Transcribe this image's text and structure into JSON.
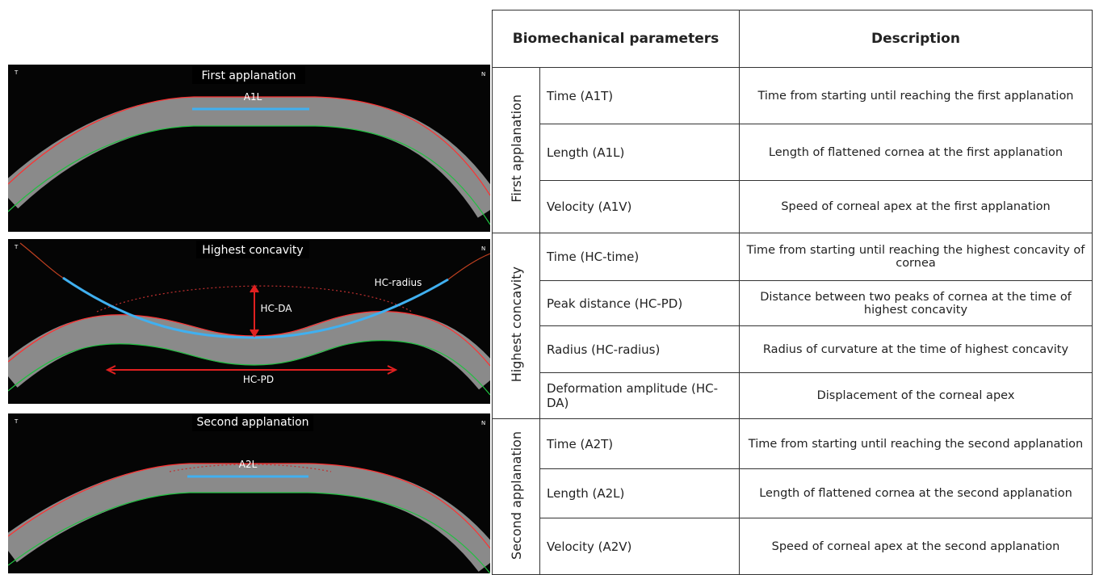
{
  "panels": [
    {
      "title": "First applanation",
      "left_marker": "T",
      "right_marker": "N",
      "labels": [
        "A1L"
      ]
    },
    {
      "title": "Highest concavity",
      "left_marker": "T",
      "right_marker": "N",
      "labels": [
        "HC-radius",
        "HC-DA",
        "HC-PD"
      ]
    },
    {
      "title": "Second applanation",
      "left_marker": "T",
      "right_marker": "N",
      "labels": [
        "A2L"
      ]
    }
  ],
  "table": {
    "header": [
      "Biomechanical parameters",
      "Description"
    ],
    "groups": [
      {
        "name": "First applanation",
        "rows": [
          [
            "Time (A1T)",
            "Time from starting until reaching the first applanation"
          ],
          [
            "Length (A1L)",
            "Length of flattened cornea at the first applanation"
          ],
          [
            "Velocity (A1V)",
            "Speed of corneal apex at the first applanation"
          ]
        ]
      },
      {
        "name": "Highest concavity",
        "rows": [
          [
            "Time (HC-time)",
            "Time from starting until reaching the highest concavity of cornea"
          ],
          [
            "Peak distance (HC-PD)",
            "Distance between two peaks of cornea at the time of highest concavity"
          ],
          [
            "Radius (HC-radius)",
            "Radius of curvature at the time of highest concavity"
          ],
          [
            "Deformation amplitude (HC-DA)",
            "Displacement of the corneal apex"
          ]
        ]
      },
      {
        "name": "Second applanation",
        "rows": [
          [
            "Time (A2T)",
            "Time from starting until reaching the second applanation"
          ],
          [
            "Length (A2L)",
            "Length of flattened cornea at the second applanation"
          ],
          [
            "Velocity (A2V)",
            "Speed of corneal apex at the second applanation"
          ]
        ]
      }
    ]
  }
}
